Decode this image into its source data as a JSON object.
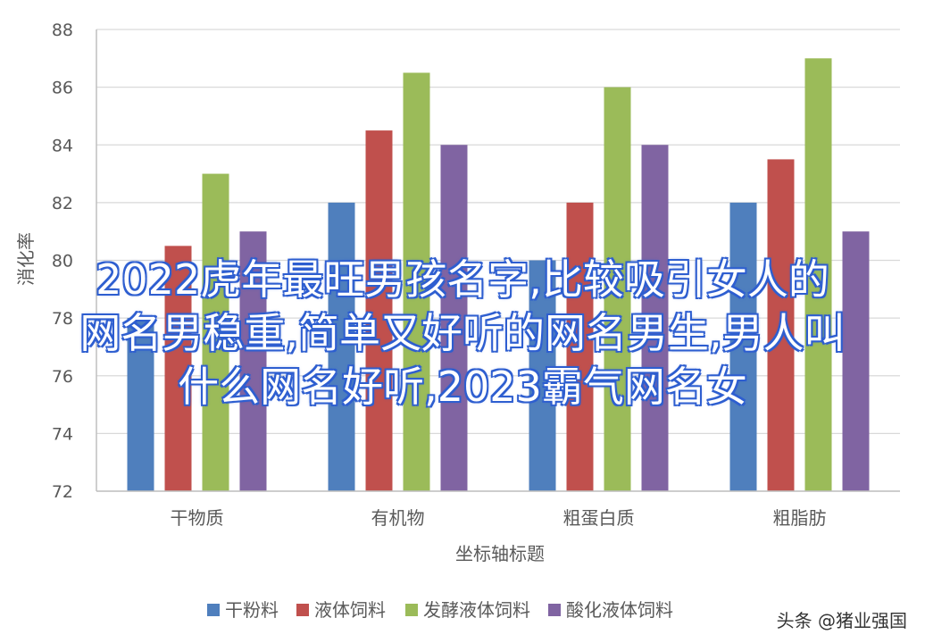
{
  "chart_data": {
    "type": "bar",
    "categories": [
      "干物质",
      "有机物",
      "粗蛋白质",
      "粗脂肪"
    ],
    "series": [
      {
        "name": "干粉料",
        "color": "#4f7fbd",
        "values": [
          78,
          82,
          80,
          82
        ]
      },
      {
        "name": "液体饲料",
        "color": "#c0504d",
        "values": [
          80.5,
          84.5,
          82,
          83.5
        ]
      },
      {
        "name": "发酵液体饲料",
        "color": "#9bbb59",
        "values": [
          83,
          86.5,
          86,
          87
        ]
      },
      {
        "name": "酸化液体饲料",
        "color": "#8064a2",
        "values": [
          81,
          84,
          84,
          81
        ]
      }
    ],
    "ylabel": "消化率",
    "xlabel": "坐标轴标题",
    "ylim": [
      72,
      88
    ],
    "yticks": [
      72,
      74,
      76,
      78,
      80,
      82,
      84,
      86,
      88
    ],
    "grid": true,
    "legend_position": "bottom"
  },
  "overlay": {
    "lines": [
      "2022虎年最旺男孩名字,比较吸引女人的",
      "网名男稳重,简单又好听的网名男生,男人叫",
      "什么网名好听,2023霸气网名女"
    ]
  },
  "watermark": "头条 @猪业强国",
  "colors": {
    "axis_text": "#595959",
    "grid": "#d9d9d9"
  }
}
